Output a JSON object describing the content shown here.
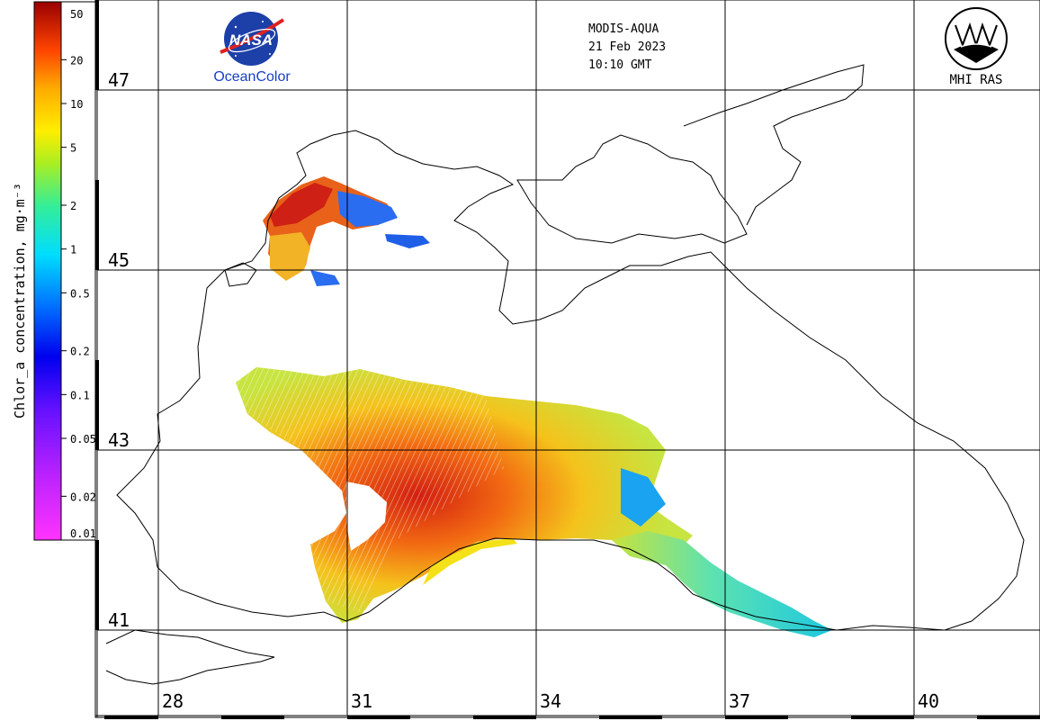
{
  "header": {
    "satellite": "MODIS-AQUA",
    "date": "21 Feb 2023",
    "time": "10:10 GMT"
  },
  "logos": {
    "nasa_text": "NASA",
    "oceancolor_text": "OceanColor",
    "mhi_text": "MHI RAS"
  },
  "colorbar": {
    "label": "Chlor_a concentration, mg·m⁻³",
    "ticks": [
      "50",
      "20",
      "10",
      "5",
      "2",
      "1",
      "0.5",
      "0.2",
      "0.1",
      "0.05",
      "0.02",
      "0.01"
    ],
    "tick_values": [
      50,
      20,
      10,
      5,
      2,
      1,
      0.5,
      0.2,
      0.1,
      0.05,
      0.02,
      0.01
    ],
    "scale": "log",
    "range": [
      0.01,
      50
    ],
    "colors": [
      "#ff00ff",
      "#8000ff",
      "#0000ff",
      "#0080ff",
      "#00ffff",
      "#00ff80",
      "#80ff00",
      "#ffff00",
      "#ff8000",
      "#ff0000",
      "#800000"
    ]
  },
  "axes": {
    "lat_labels": [
      "47",
      "45",
      "43",
      "41"
    ],
    "lon_labels": [
      "28",
      "31",
      "34",
      "37",
      "40"
    ]
  },
  "colors": {
    "land_line": "#000000",
    "grid": "#000000"
  }
}
